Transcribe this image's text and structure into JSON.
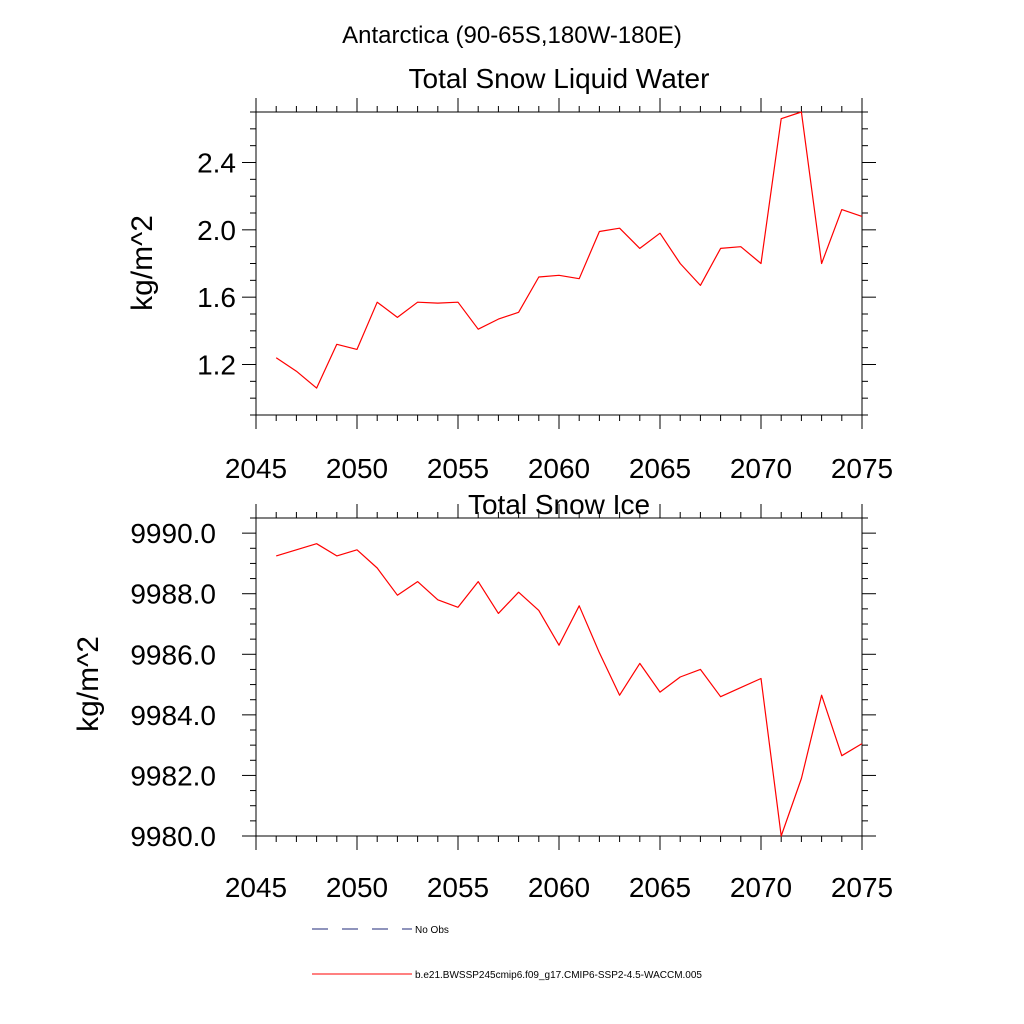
{
  "figure": {
    "super_title": "Antarctica (90-65S,180W-180E)"
  },
  "legend": {
    "entries": [
      {
        "label": "No Obs",
        "style": "dashed",
        "color": "#1f2a7a"
      },
      {
        "label": "b.e21.BWSSP245cmip6.f09_g17.CMIP6-SSP2-4.5-WACCM.005",
        "style": "solid",
        "color": "#ff0000"
      }
    ]
  },
  "chart_data": [
    {
      "type": "line",
      "title": "Total Snow Liquid Water",
      "xlabel": "",
      "ylabel": "kg/m^2",
      "xlim": [
        2045,
        2075
      ],
      "ylim": [
        0.9,
        2.7
      ],
      "x_ticks": [
        2045,
        2050,
        2055,
        2060,
        2065,
        2070,
        2075
      ],
      "x_tick_labels": [
        "2045",
        "2050",
        "2055",
        "2060",
        "2065",
        "2070",
        "2075"
      ],
      "y_ticks": [
        1.2,
        1.6,
        2.0,
        2.4
      ],
      "y_tick_labels": [
        "1.2",
        "1.6",
        "2.0",
        "2.4"
      ],
      "grid": false,
      "series": [
        {
          "name": "b.e21.BWSSP245cmip6.f09_g17.CMIP6-SSP2-4.5-WACCM.005",
          "color": "#ff0000",
          "x": [
            2046,
            2047,
            2048,
            2049,
            2050,
            2051,
            2052,
            2053,
            2054,
            2055,
            2056,
            2057,
            2058,
            2059,
            2060,
            2061,
            2062,
            2063,
            2064,
            2065,
            2066,
            2067,
            2068,
            2069,
            2070,
            2071,
            2072,
            2073,
            2074,
            2075
          ],
          "values": [
            1.24,
            1.16,
            1.06,
            1.32,
            1.29,
            1.57,
            1.48,
            1.57,
            1.565,
            1.57,
            1.41,
            1.47,
            1.51,
            1.72,
            1.73,
            1.71,
            1.99,
            2.01,
            1.89,
            1.98,
            1.8,
            1.67,
            1.89,
            1.9,
            1.8,
            2.66,
            2.7,
            1.8,
            2.12,
            2.08
          ]
        }
      ]
    },
    {
      "type": "line",
      "title": "Total Snow Ice",
      "xlabel": "",
      "ylabel": "kg/m^2",
      "xlim": [
        2045,
        2075
      ],
      "ylim": [
        9980.0,
        9990.5
      ],
      "x_ticks": [
        2045,
        2050,
        2055,
        2060,
        2065,
        2070,
        2075
      ],
      "x_tick_labels": [
        "2045",
        "2050",
        "2055",
        "2060",
        "2065",
        "2070",
        "2075"
      ],
      "y_ticks": [
        9980.0,
        9982.0,
        9984.0,
        9986.0,
        9988.0,
        9990.0
      ],
      "y_tick_labels": [
        "9980.0",
        "9982.0",
        "9984.0",
        "9986.0",
        "9988.0",
        "9990.0"
      ],
      "grid": false,
      "series": [
        {
          "name": "b.e21.BWSSP245cmip6.f09_g17.CMIP6-SSP2-4.5-WACCM.005",
          "color": "#ff0000",
          "x": [
            2046,
            2047,
            2048,
            2049,
            2050,
            2051,
            2052,
            2053,
            2054,
            2055,
            2056,
            2057,
            2058,
            2059,
            2060,
            2061,
            2062,
            2063,
            2064,
            2065,
            2066,
            2067,
            2068,
            2069,
            2070,
            2071,
            2072,
            2073,
            2074,
            2075
          ],
          "values": [
            9989.25,
            9989.45,
            9989.65,
            9989.25,
            9989.45,
            9988.85,
            9987.95,
            9988.4,
            9987.8,
            9987.55,
            9988.4,
            9987.35,
            9988.05,
            9987.45,
            9986.3,
            9987.6,
            9986.05,
            9984.65,
            9985.7,
            9984.75,
            9985.25,
            9985.5,
            9984.6,
            9984.9,
            9985.2,
            9980.0,
            9981.9,
            9984.65,
            9982.65,
            9983.05
          ]
        }
      ]
    }
  ]
}
